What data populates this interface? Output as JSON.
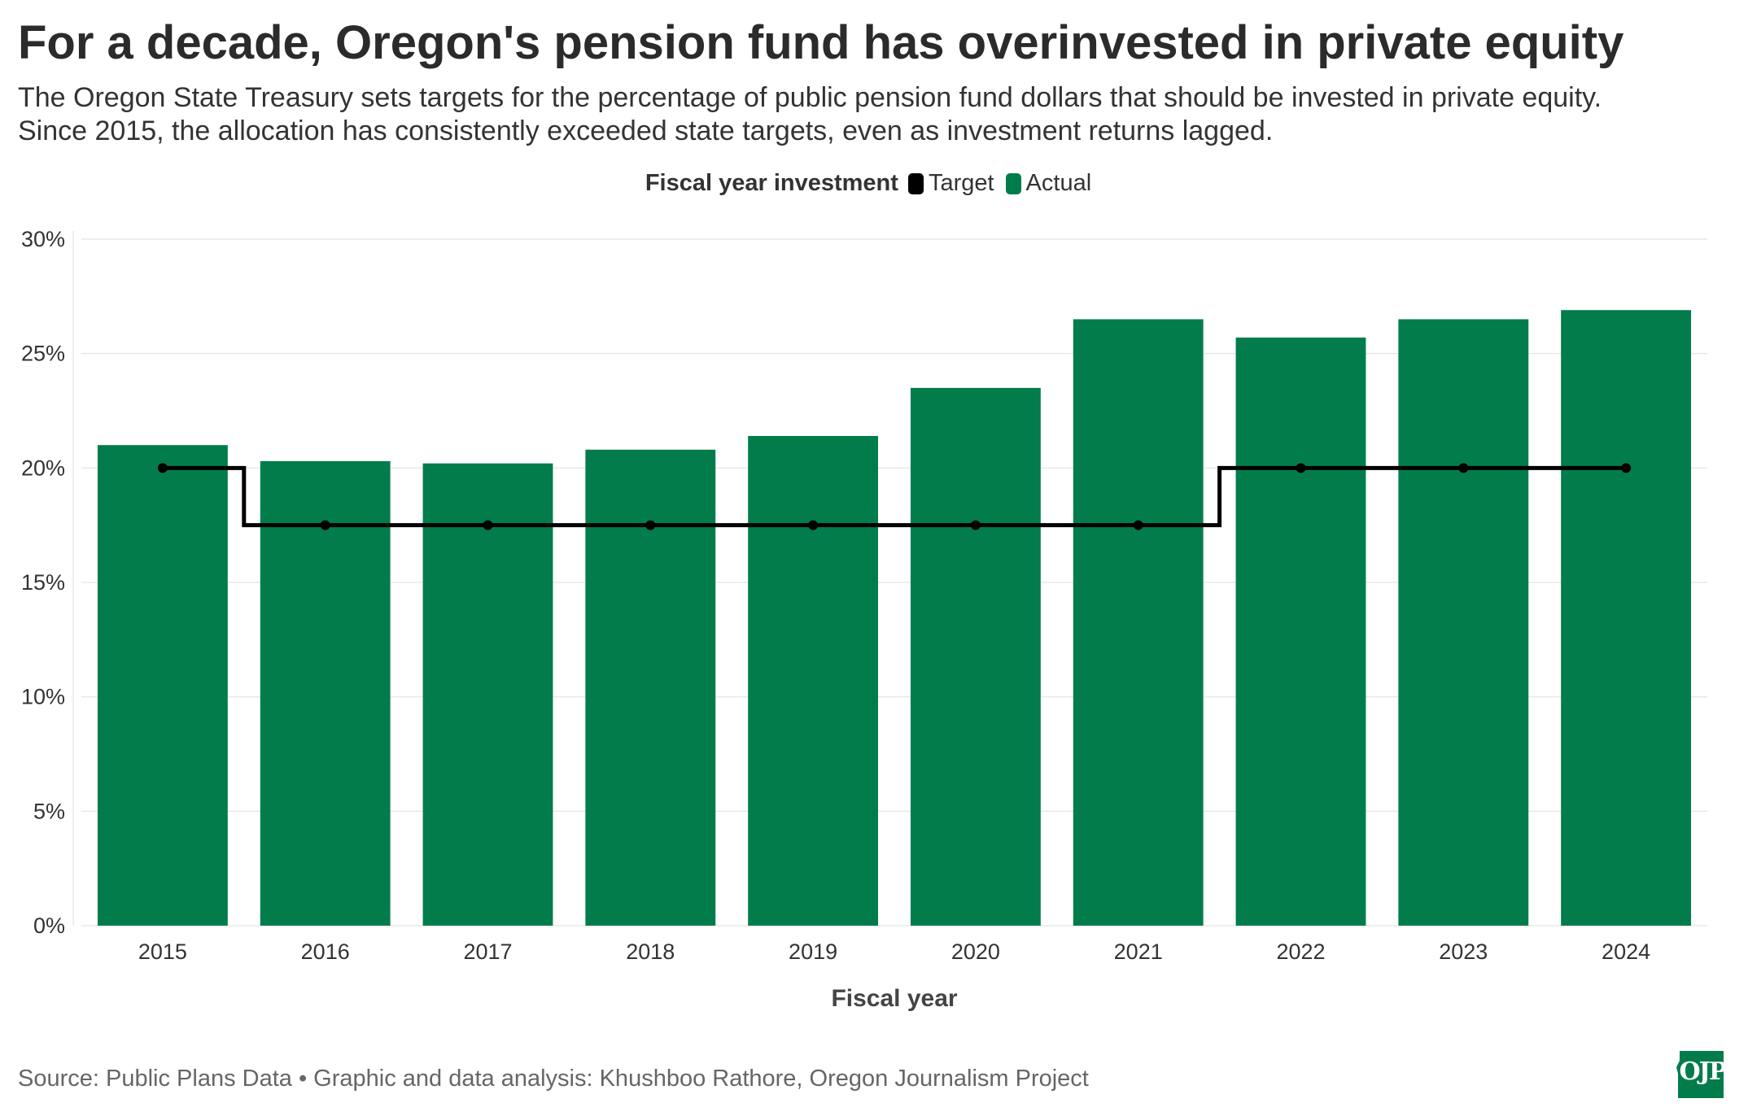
{
  "title": "For a decade, Oregon's pension fund has overinvested in private equity",
  "subtitle": [
    "The Oregon State Treasury sets targets for the percentage of public pension fund dollars that should be invested in private equity.",
    "Since 2015, the allocation has consistently exceeded state targets, even as investment returns lagged."
  ],
  "legend": {
    "title": "Fiscal year investment",
    "items": [
      {
        "label": "Target",
        "color": "#000000"
      },
      {
        "label": "Actual",
        "color": "#037c4c"
      }
    ]
  },
  "colors": {
    "bar": "#037c4c",
    "line": "#000000",
    "grid": "#e8e8e8",
    "logo": "#037c4c"
  },
  "chart_data": {
    "type": "bar",
    "title": "Fiscal year investment",
    "xlabel": "Fiscal year",
    "ylabel": "",
    "categories": [
      "2015",
      "2016",
      "2017",
      "2018",
      "2019",
      "2020",
      "2021",
      "2022",
      "2023",
      "2024"
    ],
    "series": [
      {
        "name": "Actual",
        "type": "bar",
        "values": [
          21.0,
          20.3,
          20.2,
          20.8,
          21.4,
          23.5,
          26.5,
          25.7,
          26.5,
          26.9
        ]
      },
      {
        "name": "Target",
        "type": "step-line",
        "values": [
          20.0,
          17.5,
          17.5,
          17.5,
          17.5,
          17.5,
          17.5,
          20.0,
          20.0,
          20.0
        ]
      }
    ],
    "ylim": [
      0,
      30
    ],
    "yticks": [
      0,
      5,
      10,
      15,
      20,
      25,
      30
    ],
    "ytick_labels": [
      "0%",
      "5%",
      "10%",
      "15%",
      "20%",
      "25%",
      "30%"
    ],
    "grid": true,
    "legend_position": "top-center"
  },
  "source": "Source: Public Plans Data • Graphic and data analysis: Khushboo Rathore, Oregon Journalism Project",
  "logo_text": "OJP"
}
